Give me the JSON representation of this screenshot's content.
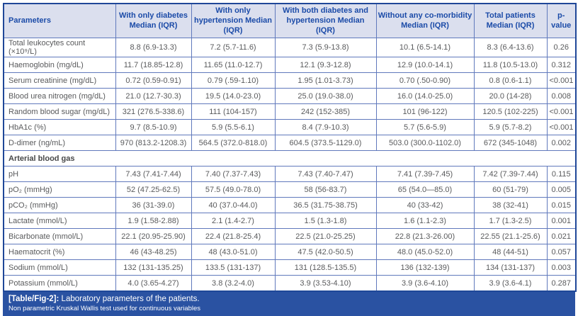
{
  "table": {
    "columns": [
      "Parameters",
      "With only diabetes Median (IQR)",
      "With only hypertension Median (IQR)",
      "With both diabetes and hypertension Median (IQR)",
      "Without any co-morbidity Median (IQR)",
      "Total patients Median (IQR)",
      "p-value"
    ],
    "rows": [
      {
        "type": "data",
        "cells": [
          "Total leukocytes count (×10⁹/L)",
          "8.8 (6.9-13.3)",
          "7.2 (5.7-11.6)",
          "7.3 (5.9-13.8)",
          "10.1 (6.5-14.1)",
          "8.3 (6.4-13.6)",
          "0.26"
        ]
      },
      {
        "type": "data",
        "cells": [
          "Haemoglobin (mg/dL)",
          "11.7 (18.85-12.8)",
          "11.65 (11.0-12.7)",
          "12.1 (9.3-12.8)",
          "12.9 (10.0-14.1)",
          "11.8 (10.5-13.0)",
          "0.312"
        ]
      },
      {
        "type": "data",
        "cells": [
          "Serum creatinine (mg/dL)",
          "0.72 (0.59-0.91)",
          "0.79 (.59-1.10)",
          "1.95 (1.01-3.73)",
          "0.70 (.50-0.90)",
          "0.8 (0.6-1.1)",
          "<0.001"
        ]
      },
      {
        "type": "data",
        "cells": [
          "Blood urea nitrogen (mg/dL)",
          "21.0 (12.7-30.3)",
          "19.5 (14.0-23.0)",
          "25.0 (19.0-38.0)",
          "16.0 (14.0-25.0)",
          "20.0 (14-28)",
          "0.008"
        ]
      },
      {
        "type": "data",
        "cells": [
          "Random blood sugar (mg/dL)",
          "321 (276.5-338.6)",
          "111 (104-157)",
          "242 (152-385)",
          "101 (96-122)",
          "120.5 (102-225)",
          "<0.001"
        ]
      },
      {
        "type": "data",
        "cells": [
          "HbA1c (%)",
          "9.7 (8.5-10.9)",
          "5.9 (5.5-6.1)",
          "8.4 (7.9-10.3)",
          "5.7 (5.6-5.9)",
          "5.9 (5.7-8.2)",
          "<0.001"
        ]
      },
      {
        "type": "data",
        "cells": [
          "D-dimer (ng/mL)",
          "970 (813.2-1208.3)",
          "564.5 (372.0-818.0)",
          "604.5 (373.5-1129.0)",
          "503.0 (300.0-1102.0)",
          "672 (345-1048)",
          "0.002"
        ]
      },
      {
        "type": "section",
        "label": "Arterial blood gas"
      },
      {
        "type": "data",
        "cells": [
          "pH",
          "7.43 (7.41-7.44)",
          "7.40 (7.37-7.43)",
          "7.43 (7.40-7.47)",
          "7.41 (7.39-7.45)",
          "7.42 (7.39-7.44)",
          "0.115"
        ]
      },
      {
        "type": "data",
        "cells": [
          "pO₂ (mmHg)",
          "52 (47.25-62.5)",
          "57.5 (49.0-78.0)",
          "58 (56-83.7)",
          "65 (54.0—85.0)",
          "60 (51-79)",
          "0.005"
        ]
      },
      {
        "type": "data",
        "cells": [
          "pCO₂ (mmHg)",
          "36 (31-39.0)",
          "40 (37.0-44.0)",
          "36.5 (31.75-38.75)",
          "40 (33-42)",
          "38 (32-41)",
          "0.015"
        ]
      },
      {
        "type": "data",
        "cells": [
          "Lactate (mmol/L)",
          "1.9 (1.58-2.88)",
          "2.1 (1.4-2.7)",
          "1.5 (1.3-1.8)",
          "1.6 (1.1-2.3)",
          "1.7 (1.3-2.5)",
          "0.001"
        ]
      },
      {
        "type": "data",
        "cells": [
          "Bicarbonate (mmol/L)",
          "22.1 (20.95-25.90)",
          "22.4 (21.8-25.4)",
          "22.5 (21.0-25.25)",
          "22.8 (21.3-26.00)",
          "22.55 (21.1-25.6)",
          "0.021"
        ]
      },
      {
        "type": "data",
        "cells": [
          "Haematocrit (%)",
          "46 (43-48.25)",
          "48 (43.0-51.0)",
          "47.5 (42.0-50.5)",
          "48.0 (45.0-52.0)",
          "48 (44-51)",
          "0.057"
        ]
      },
      {
        "type": "data",
        "cells": [
          "Sodium (mmol/L)",
          "132 (131-135.25)",
          "133.5 (131-137)",
          "131 (128.5-135.5)",
          "136 (132-139)",
          "134 (131-137)",
          "0.003"
        ]
      },
      {
        "type": "data",
        "cells": [
          "Potassium (mmol/L)",
          "4.0 (3.65-4.27)",
          "3.8 (3.2-4.0)",
          "3.9 (3.53-4.10)",
          "3.9 (3.6-4.10)",
          "3.9 (3.6-4.1)",
          "0.287"
        ]
      }
    ]
  },
  "footer": {
    "tag": "[Table/Fig-2]:",
    "caption": "Laboratory parameters of the patients.",
    "note": "Non parametric Kruskal Wallis test used for continuous variables"
  },
  "colors": {
    "outer_border": "#1f4798",
    "inner_border": "#6079bc",
    "header_bg": "#dbdfee",
    "header_text": "#1b4ba8",
    "body_text": "#595a5c",
    "footer_bg": "#2a52a2"
  }
}
